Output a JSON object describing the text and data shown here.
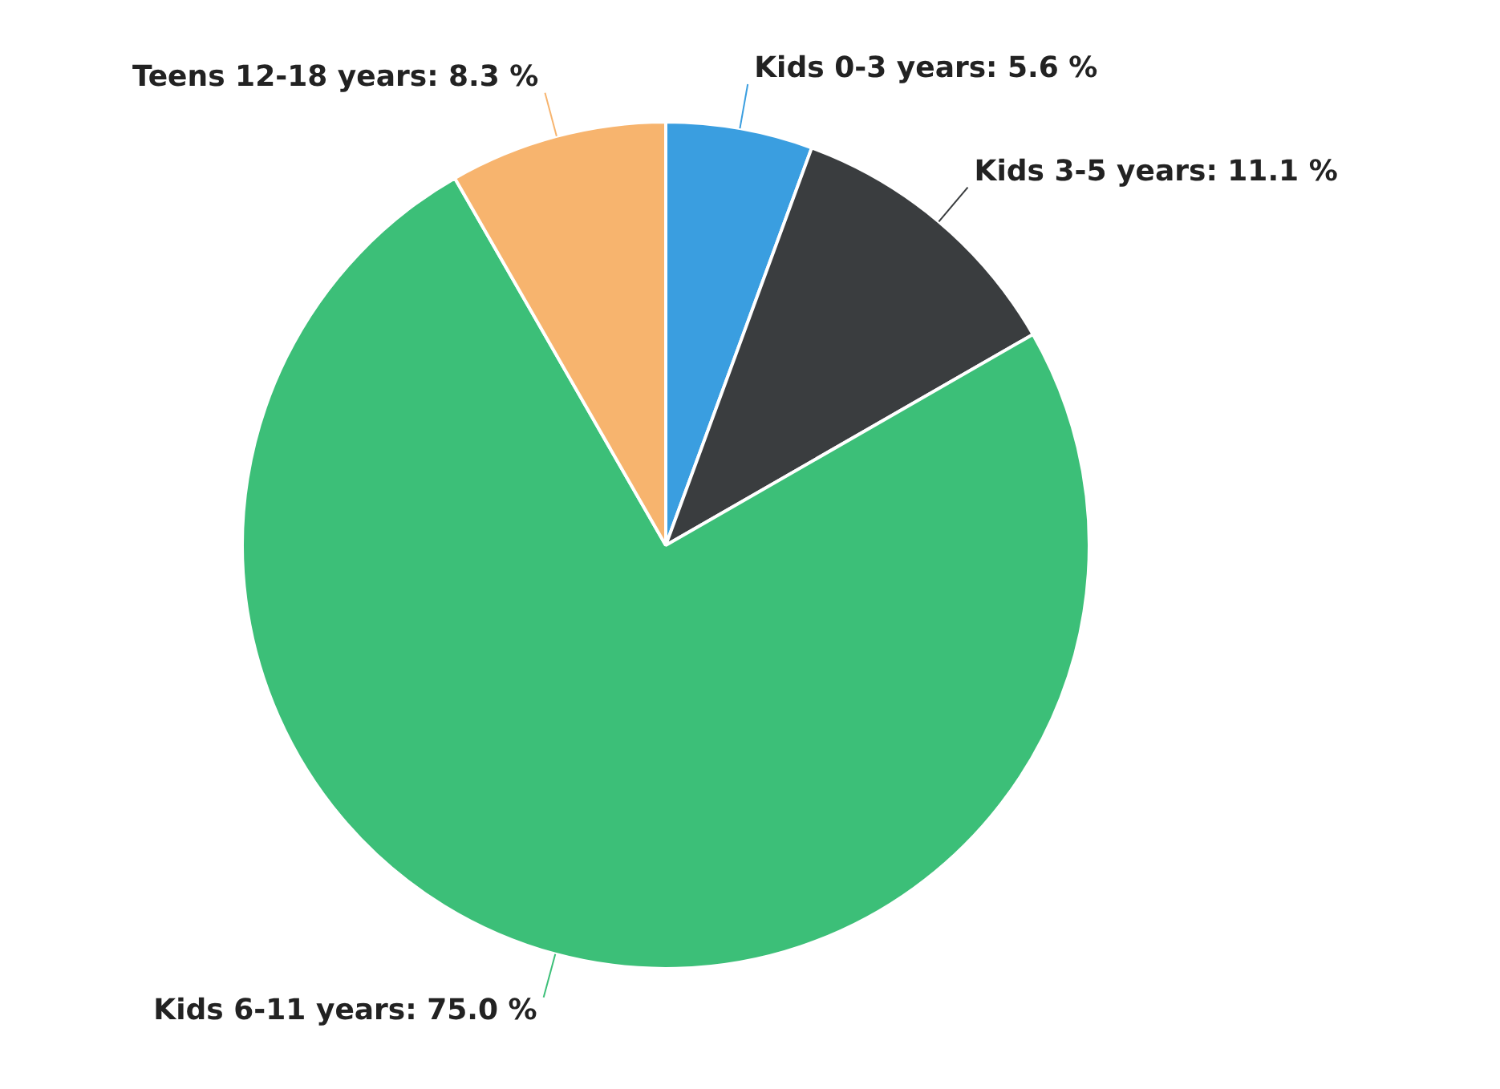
{
  "chart_data": {
    "type": "pie",
    "categories": [
      "Kids 0-3 years",
      "Kids 3-5 years",
      "Kids 6-11 years",
      "Teens 12-18 years"
    ],
    "values": [
      5.6,
      11.1,
      75.0,
      8.3
    ],
    "value_labels": [
      "5.6 %",
      "11.1 %",
      "75.0 %",
      "8.3 %"
    ],
    "colors": [
      "#3a9ee0",
      "#3a3d3f",
      "#3cbf78",
      "#f7b46e"
    ],
    "legend": false
  }
}
